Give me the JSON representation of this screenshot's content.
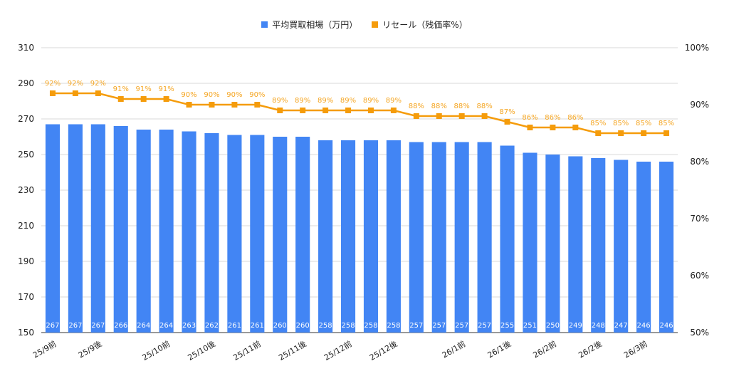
{
  "chart_data": {
    "type": "bar",
    "categories": [
      "25/9前",
      "",
      "25/9後",
      "",
      "",
      "25/10前",
      "",
      "25/10後",
      "",
      "25/11前",
      "",
      "25/11後",
      "",
      "25/12前",
      "",
      "25/12後",
      "",
      "",
      "26/1前",
      "",
      "26/1後",
      "",
      "26/2前",
      "",
      "26/2後",
      "",
      "26/3前",
      ""
    ],
    "series": [
      {
        "name": "平均買取相場（万円）",
        "type": "bar",
        "axis": "left",
        "color": "#4285f4",
        "values": [
          267,
          267,
          267,
          266,
          264,
          264,
          263,
          262,
          261,
          261,
          260,
          260,
          258,
          258,
          258,
          258,
          257,
          257,
          257,
          257,
          255,
          251,
          250,
          249,
          248,
          247,
          246,
          246
        ]
      },
      {
        "name": "リセール（残価率%）",
        "type": "line",
        "axis": "right",
        "color": "#f59c0b",
        "values": [
          92,
          92,
          92,
          91,
          91,
          91,
          90,
          90,
          90,
          90,
          89,
          89,
          89,
          89,
          89,
          89,
          88,
          88,
          88,
          88,
          87,
          86,
          86,
          86,
          85,
          85,
          85,
          85
        ],
        "labels": [
          "92%",
          "92%",
          "92%",
          "91%",
          "91%",
          "91%",
          "90%",
          "90%",
          "90%",
          "90%",
          "89%",
          "89%",
          "89%",
          "89%",
          "89%",
          "89%",
          "88%",
          "88%",
          "88%",
          "88%",
          "87%",
          "86%",
          "86%",
          "86%",
          "85%",
          "85%",
          "85%",
          "85%"
        ]
      }
    ],
    "y_left": {
      "min": 150,
      "max": 310,
      "ticks": [
        "150",
        "170",
        "190",
        "210",
        "230",
        "250",
        "270",
        "290",
        "310"
      ]
    },
    "y_right": {
      "min": 50,
      "max": 100,
      "ticks": [
        "50%",
        "60%",
        "70%",
        "80%",
        "90%",
        "100%"
      ]
    },
    "grid": true,
    "legend_position": "top"
  }
}
